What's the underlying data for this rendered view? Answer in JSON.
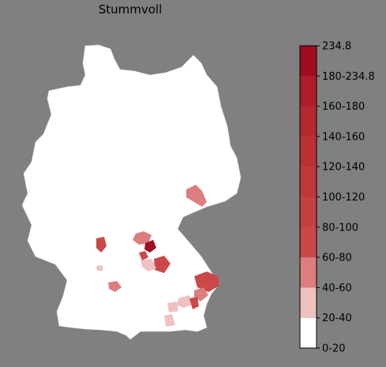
{
  "title": "Stummvoll",
  "colorbar": {
    "labels": [
      "0-20",
      "20-40",
      "40-60",
      "60-80",
      "80-100",
      "100-120",
      "120-140",
      "140-160",
      "160-180",
      "180-234.8",
      "234.8"
    ],
    "colors": [
      "#ffffff",
      "#efc1c1",
      "#dc7e7e",
      "#cb4848",
      "#c54040",
      "#c03838",
      "#bb3033",
      "#b5282e",
      "#ad1c28",
      "#a00c20"
    ]
  }
}
